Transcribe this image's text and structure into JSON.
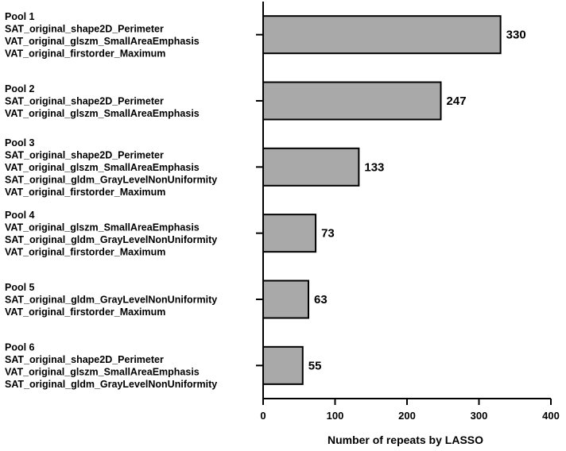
{
  "chart_data": {
    "type": "bar",
    "orientation": "horizontal",
    "categories": [
      {
        "title": "Pool 1",
        "features": [
          "SAT_original_shape2D_Perimeter",
          "VAT_original_glszm_SmallAreaEmphasis",
          "VAT_original_firstorder_Maximum"
        ]
      },
      {
        "title": "Pool 2",
        "features": [
          "SAT_original_shape2D_Perimeter",
          "VAT_original_glszm_SmallAreaEmphasis"
        ]
      },
      {
        "title": "Pool 3",
        "features": [
          "SAT_original_shape2D_Perimeter",
          "VAT_original_glszm_SmallAreaEmphasis",
          "SAT_original_gldm_GrayLevelNonUniformity",
          "VAT_original_firstorder_Maximum"
        ]
      },
      {
        "title": "Pool 4",
        "features": [
          "VAT_original_glszm_SmallAreaEmphasis",
          "SAT_original_gldm_GrayLevelNonUniformity",
          "VAT_original_firstorder_Maximum"
        ]
      },
      {
        "title": "Pool 5",
        "features": [
          "SAT_original_gldm_GrayLevelNonUniformity",
          "VAT_original_firstorder_Maximum"
        ]
      },
      {
        "title": "Pool 6",
        "features": [
          "SAT_original_shape2D_Perimeter",
          "VAT_original_glszm_SmallAreaEmphasis",
          "SAT_original_gldm_GrayLevelNonUniformity"
        ]
      }
    ],
    "values": [
      330,
      247,
      133,
      73,
      63,
      55
    ],
    "value_labels": [
      "330",
      "247",
      "133",
      "73",
      "63",
      "55"
    ],
    "xlabel": "Number of repeats by LASSO",
    "xlim": [
      0,
      400
    ],
    "xticks": [
      "0",
      "100",
      "200",
      "300",
      "400"
    ],
    "bar_color": "#a9a9a9",
    "grid": false
  }
}
